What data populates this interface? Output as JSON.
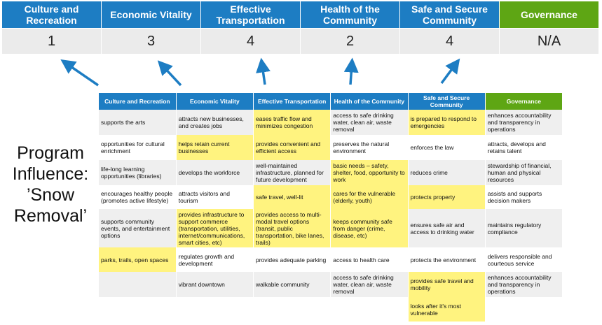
{
  "categories": [
    "Culture and Recreation",
    "Economic Vitality",
    "Effective Transportation",
    "Health of the Community",
    "Safe and Secure Community",
    "Governance"
  ],
  "scores": [
    "1",
    "3",
    "4",
    "2",
    "4",
    "N/A"
  ],
  "program_influence": "Program Influence: ’Snow Removal’",
  "colors": {
    "header_blue": "#1d7dc3",
    "governance_green": "#5ea614",
    "highlight": "#fff37f",
    "arrow": "#1d7dc3"
  },
  "table": {
    "headers": [
      "Culture and Recreation",
      "Economic Vitality",
      "Effective Transportation",
      "Health of the Community",
      "Safe and Secure Community",
      "Governance"
    ],
    "rows": [
      [
        {
          "t": "supports the arts"
        },
        {
          "t": "attracts new businesses, and creates jobs"
        },
        {
          "t": "eases traffic flow and minimizes congestion",
          "h": true
        },
        {
          "t": "access to safe drinking water, clean air, waste removal"
        },
        {
          "t": "is prepared to respond to emergencies",
          "h": true
        },
        {
          "t": "enhances accountability and transparency in operations"
        }
      ],
      [
        {
          "t": "opportunities for cultural enrichment"
        },
        {
          "t": "helps retain current businesses",
          "h": true
        },
        {
          "t": "provides convenient and efficient access",
          "h": true
        },
        {
          "t": "preserves the natural environment"
        },
        {
          "t": "enforces the law"
        },
        {
          "t": "attracts, develops and retains talent"
        }
      ],
      [
        {
          "t": "life-long learning opportunities (libraries)"
        },
        {
          "t": "develops the workforce"
        },
        {
          "t": "well-maintained infrastructure, planned for future development"
        },
        {
          "t": "basic needs – safety, shelter, food, opportunity to work",
          "h": true
        },
        {
          "t": "reduces crime"
        },
        {
          "t": "stewardship of financial, human and physical resources"
        }
      ],
      [
        {
          "t": "encourages healthy people (promotes active lifestyle)"
        },
        {
          "t": "attracts visitors and tourism"
        },
        {
          "t": "safe travel, well-lit",
          "h": true
        },
        {
          "t": "cares for the vulnerable (elderly, youth)",
          "h": true
        },
        {
          "t": "protects property",
          "h": true
        },
        {
          "t": "assists and supports decision makers"
        }
      ],
      [
        {
          "t": "supports community events, and entertainment options"
        },
        {
          "t": "provides infrastructure to support commerce (transportation, utilities, internet/communications, smart cities, etc)",
          "h": true
        },
        {
          "t": "provides access to multi-modal travel options (transit, public transportation, bike lanes, trails)",
          "h": true
        },
        {
          "t": "keeps community safe from danger (crime, disease, etc)",
          "h": true
        },
        {
          "t": "ensures safe air and access to drinking water"
        },
        {
          "t": "maintains regulatory compliance"
        }
      ],
      [
        {
          "t": "parks, trails, open spaces",
          "h": true
        },
        {
          "t": "regulates growth and development"
        },
        {
          "t": "provides adequate parking"
        },
        {
          "t": "access to health care"
        },
        {
          "t": "protects the environment"
        },
        {
          "t": "delivers responsible and courteous service"
        }
      ],
      [
        {
          "t": ""
        },
        {
          "t": "vibrant downtown"
        },
        {
          "t": "walkable community"
        },
        {
          "t": "access to safe drinking water, clean air, waste removal"
        },
        {
          "t": "provides safe travel and mobility",
          "h": true
        },
        {
          "t": "enhances accountability and transparency in operations"
        }
      ],
      [
        {
          "t": ""
        },
        {
          "t": ""
        },
        {
          "t": ""
        },
        {
          "t": ""
        },
        {
          "t": "looks after it's most vulnerable",
          "h": true
        },
        {
          "t": ""
        }
      ]
    ]
  }
}
